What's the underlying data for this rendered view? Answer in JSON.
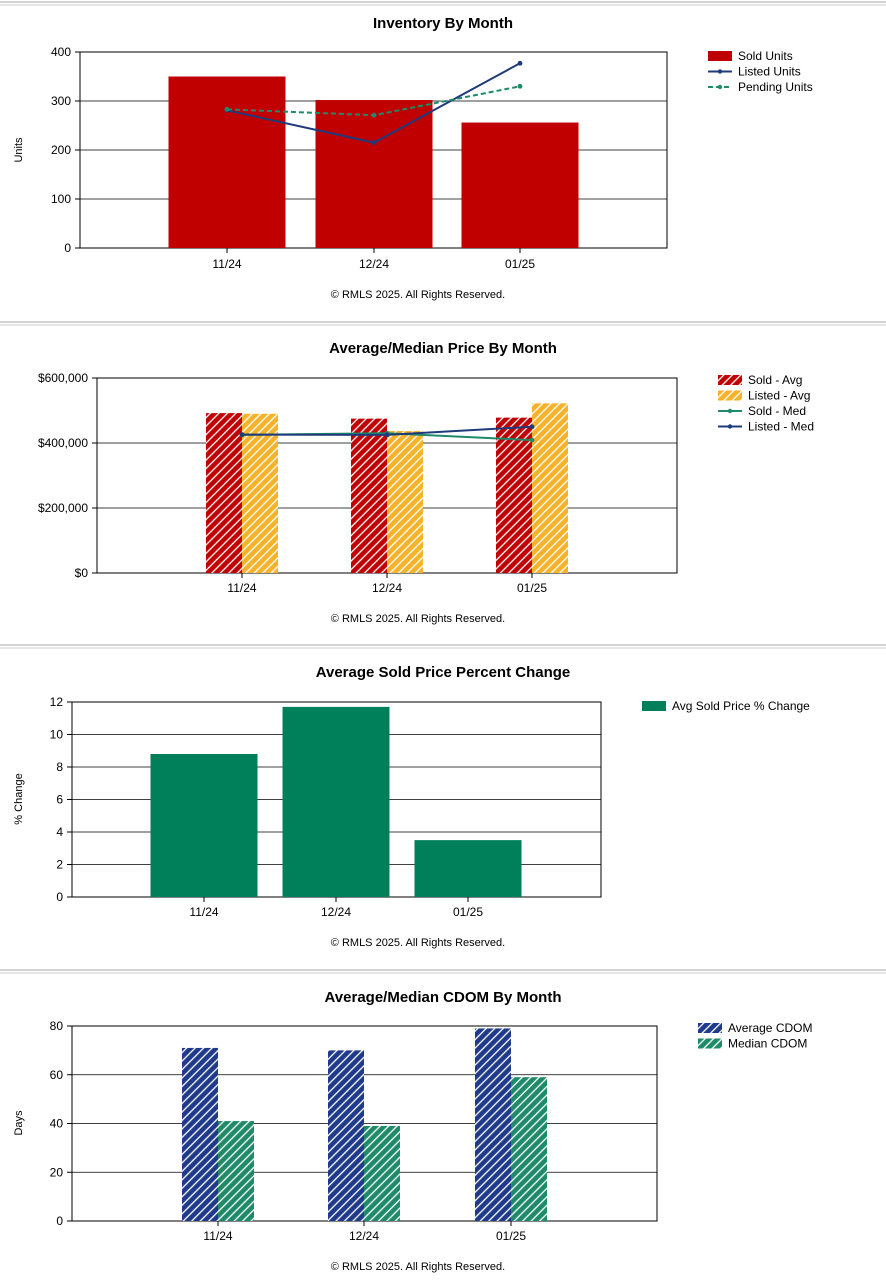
{
  "charts": [
    {
      "title": "Inventory By Month",
      "footer": "© RMLS 2025.  All Rights Reserved."
    },
    {
      "title": "Average/Median Price By Month",
      "footer": "© RMLS 2025.  All Rights Reserved."
    },
    {
      "title": "Average Sold Price Percent Change",
      "footer": "© RMLS 2025.  All Rights Reserved."
    },
    {
      "title": "Average/Median CDOM By Month",
      "footer": "© RMLS 2025.  All Rights Reserved."
    }
  ],
  "chart_data": [
    {
      "type": "bar",
      "title": "Inventory By Month",
      "ylabel": "Units",
      "xlabel": "",
      "categories": [
        "11/24",
        "12/24",
        "01/25"
      ],
      "ylim": [
        0,
        400
      ],
      "yticks": [
        0,
        100,
        200,
        300,
        400
      ],
      "ytick_labels": [
        "0",
        "100",
        "200",
        "300",
        "400"
      ],
      "grid": true,
      "legend_position": "right",
      "series": [
        {
          "name": "Sold Units",
          "kind": "bar",
          "color": "#c00000",
          "values": [
            350,
            302,
            256
          ]
        },
        {
          "name": "Listed Units",
          "kind": "line",
          "color": "#1f3a7a",
          "dashed": false,
          "values": [
            281,
            215,
            377
          ]
        },
        {
          "name": "Pending Units",
          "kind": "line",
          "color": "#1f8a6a",
          "dashed": true,
          "values": [
            283,
            271,
            330
          ]
        }
      ]
    },
    {
      "type": "bar",
      "title": "Average/Median Price By Month",
      "ylabel": "",
      "xlabel": "",
      "categories": [
        "11/24",
        "12/24",
        "01/25"
      ],
      "ylim": [
        0,
        600000
      ],
      "yticks": [
        0,
        200000,
        400000,
        600000
      ],
      "ytick_labels": [
        "$0",
        "$200,000",
        "$400,000",
        "$600,000"
      ],
      "grid": true,
      "legend_position": "right",
      "series": [
        {
          "name": "Sold - Avg",
          "kind": "bar",
          "color": "#c00000",
          "hatch": true,
          "values": [
            492000,
            475000,
            478000
          ]
        },
        {
          "name": "Listed - Avg",
          "kind": "bar",
          "color": "#f5b22a",
          "hatch": true,
          "values": [
            490000,
            437000,
            522000
          ]
        },
        {
          "name": "Sold - Med",
          "kind": "line",
          "color": "#1f8a6a",
          "dashed": false,
          "values": [
            425000,
            430000,
            409000
          ]
        },
        {
          "name": "Listed - Med",
          "kind": "line",
          "color": "#1f3a7a",
          "dashed": false,
          "values": [
            426000,
            425000,
            450000
          ]
        }
      ]
    },
    {
      "type": "bar",
      "title": "Average Sold Price Percent Change",
      "ylabel": "% Change",
      "xlabel": "",
      "categories": [
        "11/24",
        "12/24",
        "01/25"
      ],
      "ylim": [
        0,
        12
      ],
      "yticks": [
        0,
        2,
        4,
        6,
        8,
        10,
        12
      ],
      "ytick_labels": [
        "0",
        "2",
        "4",
        "6",
        "8",
        "10",
        "12"
      ],
      "grid": true,
      "legend_position": "right",
      "series": [
        {
          "name": "Avg Sold Price % Change",
          "kind": "bar",
          "color": "#00805a",
          "values": [
            8.8,
            11.7,
            3.5
          ]
        }
      ]
    },
    {
      "type": "bar",
      "title": "Average/Median CDOM By Month",
      "ylabel": "Days",
      "xlabel": "",
      "categories": [
        "11/24",
        "12/24",
        "01/25"
      ],
      "ylim": [
        0,
        80
      ],
      "yticks": [
        0,
        20,
        40,
        60,
        80
      ],
      "ytick_labels": [
        "0",
        "20",
        "40",
        "60",
        "80"
      ],
      "grid": true,
      "legend_position": "right",
      "series": [
        {
          "name": "Average CDOM",
          "kind": "bar",
          "color": "#1f3a8a",
          "hatch": true,
          "values": [
            71,
            70,
            79
          ]
        },
        {
          "name": "Median CDOM",
          "kind": "bar",
          "color": "#1f8a6a",
          "hatch": true,
          "values": [
            41,
            39,
            59
          ]
        }
      ]
    }
  ]
}
